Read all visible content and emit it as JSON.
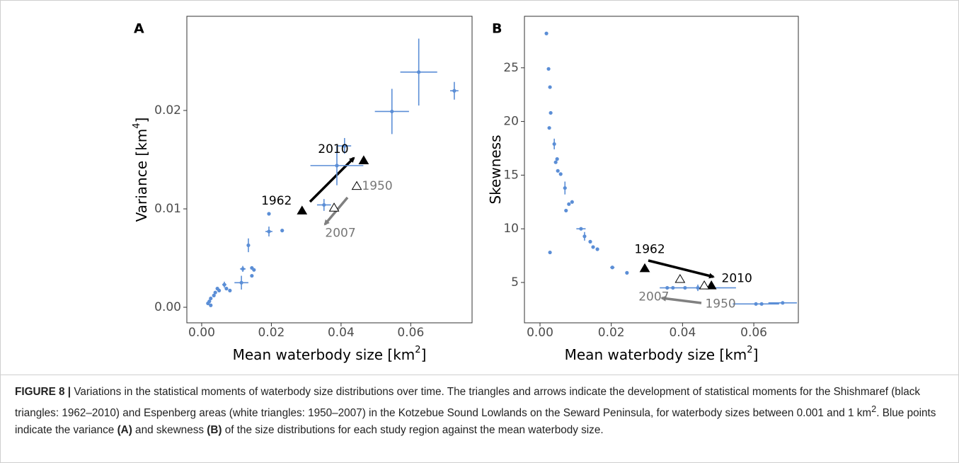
{
  "chart_data": [
    {
      "type": "scatter",
      "panel_label": "A",
      "x_label": [
        "Mean waterbody size [km",
        "2",
        "]"
      ],
      "y_label": [
        "Variance [km",
        "4",
        "]"
      ],
      "xlim": [
        -0.00426,
        0.0776
      ],
      "ylim": [
        -0.00158,
        0.02957
      ],
      "xticks": [
        {
          "value": 0,
          "label": "0.00"
        },
        {
          "value": 0.02,
          "label": "0.02"
        },
        {
          "value": 0.04,
          "label": "0.04"
        },
        {
          "value": 0.06,
          "label": "0.06"
        }
      ],
      "yticks": [
        {
          "value": 0,
          "label": "0.00"
        },
        {
          "value": 0.01,
          "label": "0.01"
        },
        {
          "value": 0.02,
          "label": "0.02"
        }
      ],
      "series": [
        {
          "marker": "dot",
          "color": "#5b8ed6",
          "x": [
            0.0018,
            0.0022,
            0.0026,
            0.0026,
            0.0035,
            0.0039,
            0.0045,
            0.005,
            0.0065,
            0.0071,
            0.0081,
            0.0118,
            0.0114,
            0.0134,
            0.0144,
            0.015,
            0.0144,
            0.0193,
            0.0193,
            0.0231,
            0.0351,
            0.041,
            0.0388,
            0.0546,
            0.0623,
            0.0725
          ],
          "values": [
            0.0004,
            0.0006,
            0.0009,
            0.0002,
            0.0012,
            0.0015,
            0.0019,
            0.0017,
            0.0023,
            0.0019,
            0.0017,
            0.0039,
            0.0025,
            0.0063,
            0.004,
            0.0038,
            0.0032,
            0.0095,
            0.0077,
            0.0078,
            0.0104,
            0.0164,
            0.0144,
            0.0199,
            0.0239,
            0.022
          ],
          "xerr": [
            null,
            null,
            null,
            null,
            null,
            null,
            null,
            null,
            0.0006,
            null,
            null,
            0.0008,
            0.002,
            null,
            null,
            null,
            null,
            null,
            0.001,
            null,
            0.002,
            0.0019,
            0.0076,
            0.0049,
            0.0053,
            0.0012
          ],
          "yerr": [
            null,
            null,
            null,
            null,
            null,
            null,
            null,
            null,
            0.0003,
            null,
            null,
            0.0003,
            0.0007,
            0.0007,
            null,
            null,
            null,
            null,
            0.0005,
            null,
            0.0006,
            0.0008,
            0.002,
            0.0023,
            0.0034,
            0.0009
          ]
        },
        {
          "marker": "filled-triangle",
          "color": "#000000",
          "label_color": "#000000",
          "x": [
            0.0288,
            0.0465
          ],
          "values": [
            0.0098,
            0.0149
          ],
          "labels": [
            "1962",
            "2010"
          ]
        },
        {
          "marker": "open-triangle",
          "color": "#000000",
          "label_color": "#777777",
          "x": [
            0.0445,
            0.038
          ],
          "values": [
            0.0123,
            0.0101
          ],
          "labels": [
            "1950",
            "2007"
          ]
        }
      ]
    },
    {
      "type": "scatter",
      "panel_label": "B",
      "x_label": [
        "Mean waterbody size [km",
        "2",
        "]"
      ],
      "y_label": [
        "Skewness"
      ],
      "xlim": [
        -0.00437,
        0.0725
      ],
      "ylim": [
        1.24,
        29.8
      ],
      "xticks": [
        {
          "value": 0,
          "label": "0.00"
        },
        {
          "value": 0.02,
          "label": "0.02"
        },
        {
          "value": 0.04,
          "label": "0.04"
        },
        {
          "value": 0.06,
          "label": "0.06"
        }
      ],
      "yticks": [
        5,
        10,
        15,
        20,
        25
      ],
      "series": [
        {
          "marker": "dot",
          "color": "#5b8ed6",
          "x": [
            0.0018,
            0.0024,
            0.0028,
            0.003,
            0.0026,
            0.004,
            0.0044,
            0.0048,
            0.005,
            0.0058,
            0.007,
            0.0073,
            0.0081,
            0.009,
            0.0115,
            0.0125,
            0.0141,
            0.0149,
            0.0161,
            0.0028,
            0.0203,
            0.0244,
            0.0357,
            0.0373,
            0.0443,
            0.0407,
            0.0606,
            0.0622,
            0.0681
          ],
          "values": [
            28.2,
            24.9,
            23.2,
            20.8,
            19.4,
            17.9,
            16.2,
            16.5,
            15.4,
            15.1,
            13.8,
            11.7,
            12.3,
            12.5,
            10.0,
            9.3,
            8.8,
            8.3,
            8.1,
            7.8,
            6.4,
            5.9,
            4.5,
            4.5,
            4.5,
            4.5,
            3.0,
            3.0,
            3.1
          ],
          "xerr": [
            null,
            null,
            null,
            null,
            null,
            null,
            null,
            null,
            null,
            null,
            null,
            null,
            null,
            null,
            0.0013,
            null,
            null,
            null,
            null,
            null,
            0.0006,
            null,
            null,
            null,
            0.0107,
            null,
            0.0065,
            null,
            0.004
          ],
          "yerr": [
            null,
            null,
            null,
            null,
            null,
            0.5,
            null,
            null,
            null,
            null,
            0.6,
            null,
            null,
            null,
            null,
            0.4,
            null,
            null,
            null,
            null,
            null,
            null,
            null,
            null,
            0.3,
            null,
            null,
            null,
            null
          ]
        },
        {
          "marker": "filled-triangle",
          "color": "#000000",
          "label_color": "#000000",
          "x": [
            0.0294,
            0.0481
          ],
          "values": [
            6.3,
            4.7
          ],
          "labels": [
            "1962",
            "2010"
          ]
        },
        {
          "marker": "open-triangle",
          "color": "#000000",
          "label_color": "#777777",
          "x": [
            0.0461,
            0.0393
          ],
          "values": [
            4.7,
            5.3
          ],
          "labels": [
            "1950",
            "2007"
          ]
        }
      ]
    }
  ],
  "caption": [
    "FIGURE 8 |",
    " Variations in the statistical moments of waterbody size distributions over time. The triangles and arrows indicate the development of statistical moments for the Shishmaref (black triangles: 1962–2010) and Espenberg areas (white triangles: 1950–2007) in the Kotzebue Sound Lowlands on the Seward Peninsula, for waterbody sizes between 0.001 and 1 km",
    "2",
    ". Blue points indicate the variance ",
    "(A)",
    " and skewness ",
    "(B)",
    " of the size distributions for each study region against the mean waterbody size."
  ]
}
